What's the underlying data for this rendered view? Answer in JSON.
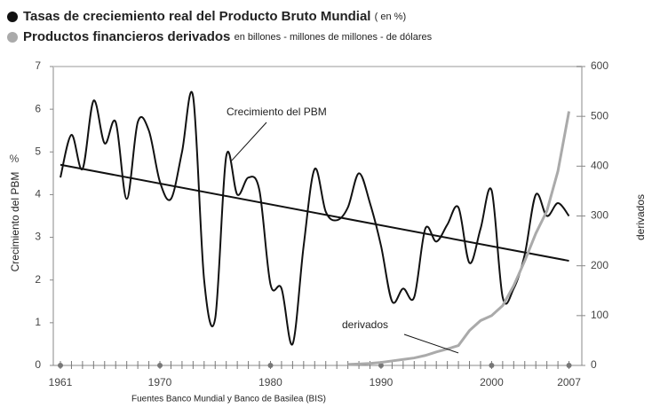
{
  "chart_data": {
    "type": "line",
    "legend": [
      {
        "name": "Tasas de creciemiento real del Producto Bruto Mundial",
        "note": "( en %)",
        "color": "#111111"
      },
      {
        "name": "Productos financieros derivados",
        "note": "en billones - millones de millones - de dólares",
        "color": "#aaaaaa"
      }
    ],
    "ylabel": "Crecimiento del PBM",
    "yunit": "%",
    "y2label": "derivados",
    "source": "Fuentes  Banco Mundial y Banco de Basilea (BIS)",
    "annotations": [
      {
        "text": "Crecimiento del PBM",
        "x": 1976.5,
        "y": 4.8
      },
      {
        "text": "derivados",
        "x": 1997,
        "y2": 25
      }
    ],
    "xlim": [
      1961,
      2008
    ],
    "xticks": [
      1961,
      1970,
      1980,
      1990,
      2000,
      2007
    ],
    "ylim": [
      0,
      7
    ],
    "yticks": [
      0,
      1,
      2,
      3,
      4,
      5,
      6,
      7
    ],
    "y2lim": [
      0,
      600
    ],
    "y2ticks": [
      0,
      100,
      200,
      300,
      400,
      500,
      600
    ],
    "series": [
      {
        "color": "#111111",
        "smooth": true,
        "x": [
          1961,
          1962,
          1963,
          1964,
          1965,
          1966,
          1967,
          1968,
          1969,
          1970,
          1971,
          1972,
          1973,
          1974,
          1975,
          1976,
          1977,
          1978,
          1979,
          1980,
          1981,
          1982,
          1983,
          1984,
          1985,
          1986,
          1987,
          1988,
          1989,
          1990,
          1991,
          1992,
          1993,
          1994,
          1995,
          1996,
          1997,
          1998,
          1999,
          2000,
          2001,
          2002,
          2003,
          2004,
          2005,
          2006,
          2007
        ],
        "values": [
          4.4,
          5.4,
          4.6,
          6.2,
          5.2,
          5.7,
          3.9,
          5.7,
          5.5,
          4.3,
          3.9,
          5.0,
          6.3,
          2.0,
          1.1,
          4.9,
          4.0,
          4.4,
          4.1,
          1.9,
          1.8,
          0.5,
          2.8,
          4.6,
          3.6,
          3.4,
          3.7,
          4.5,
          3.8,
          2.8,
          1.5,
          1.8,
          1.6,
          3.2,
          2.9,
          3.3,
          3.7,
          2.4,
          3.2,
          4.1,
          1.6,
          1.8,
          2.6,
          4.0,
          3.5,
          3.8,
          3.5
        ]
      },
      {
        "color": "#111111",
        "x": [
          1961,
          2007
        ],
        "values": [
          4.7,
          2.45
        ]
      },
      {
        "color": "#aaaaaa",
        "axis": "y2",
        "x": [
          1987,
          1988,
          1989,
          1990,
          1991,
          1992,
          1993,
          1994,
          1995,
          1996,
          1997,
          1998,
          1999,
          2000,
          2001,
          2002,
          2003,
          2004,
          2005,
          2006,
          2007
        ],
        "values": [
          2,
          3,
          4,
          6,
          9,
          12,
          15,
          20,
          27,
          33,
          40,
          70,
          90,
          100,
          120,
          160,
          210,
          265,
          310,
          390,
          510
        ]
      }
    ]
  }
}
